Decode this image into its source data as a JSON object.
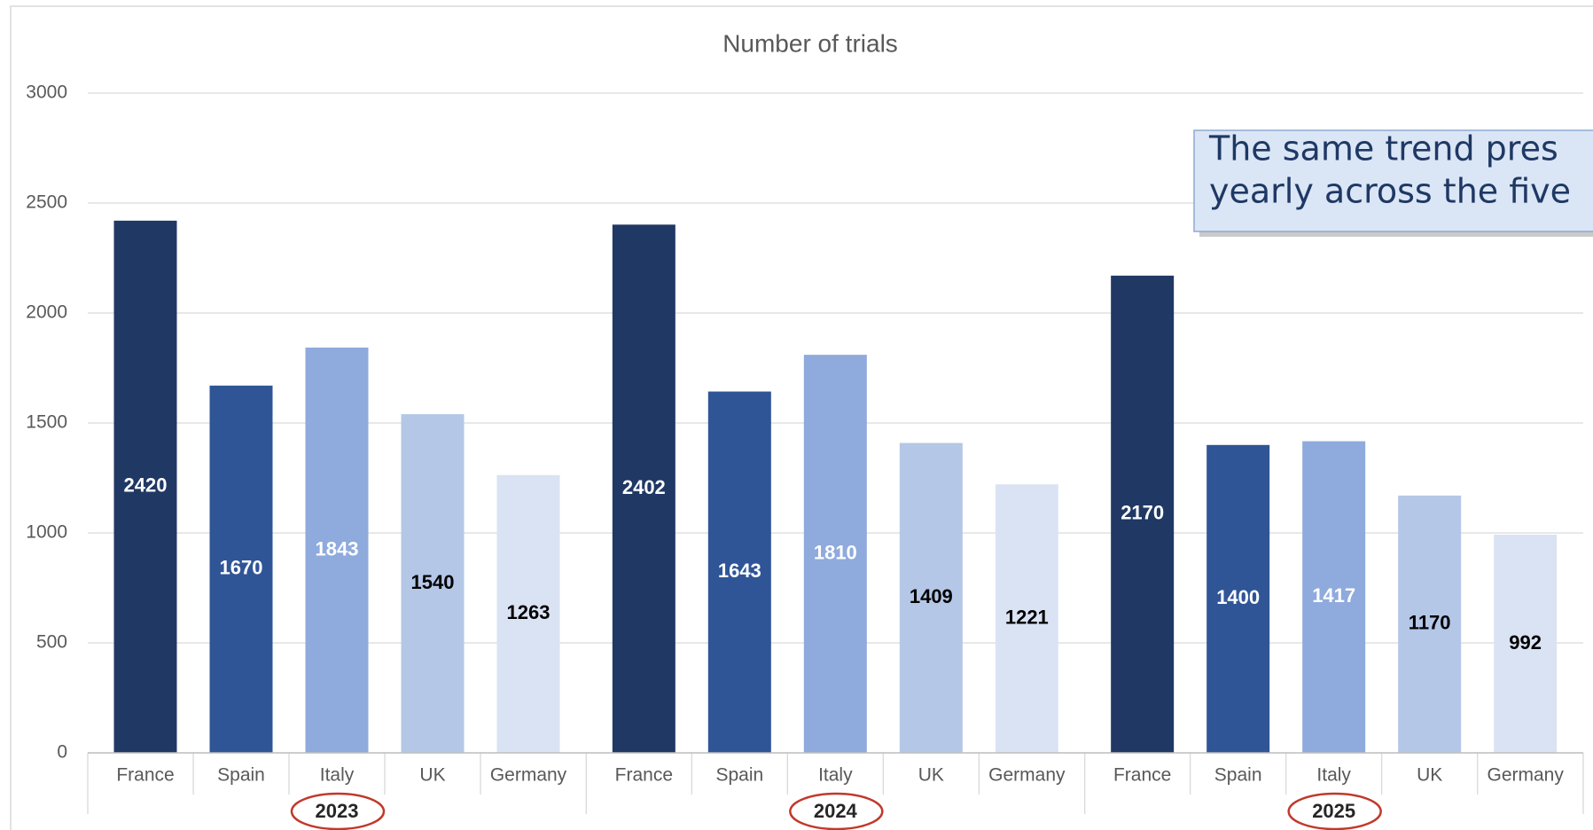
{
  "chart_data": {
    "type": "bar",
    "title": "Number of trials",
    "categories": [
      "2023",
      "2024",
      "2025"
    ],
    "series": [
      {
        "name": "France",
        "color": "#203864",
        "label_color": "#ffffff",
        "values": [
          2420,
          2402,
          2170
        ]
      },
      {
        "name": "Spain",
        "color": "#2f5597",
        "label_color": "#ffffff",
        "values": [
          1670,
          1643,
          1400
        ]
      },
      {
        "name": "Italy",
        "color": "#8faadc",
        "label_color": "#ffffff",
        "values": [
          1843,
          1810,
          1417
        ]
      },
      {
        "name": "UK",
        "color": "#b4c7e7",
        "label_color": "#000000",
        "values": [
          1540,
          1409,
          1170
        ]
      },
      {
        "name": "Germany",
        "color": "#dae3f3",
        "label_color": "#000000",
        "values": [
          1263,
          1221,
          992
        ]
      }
    ],
    "ylim": [
      0,
      3000
    ],
    "yticks": [
      0,
      500,
      1000,
      1500,
      2000,
      2500,
      3000
    ],
    "grid": true,
    "annotation": [
      "The same trend pres",
      "yearly across the five"
    ]
  }
}
